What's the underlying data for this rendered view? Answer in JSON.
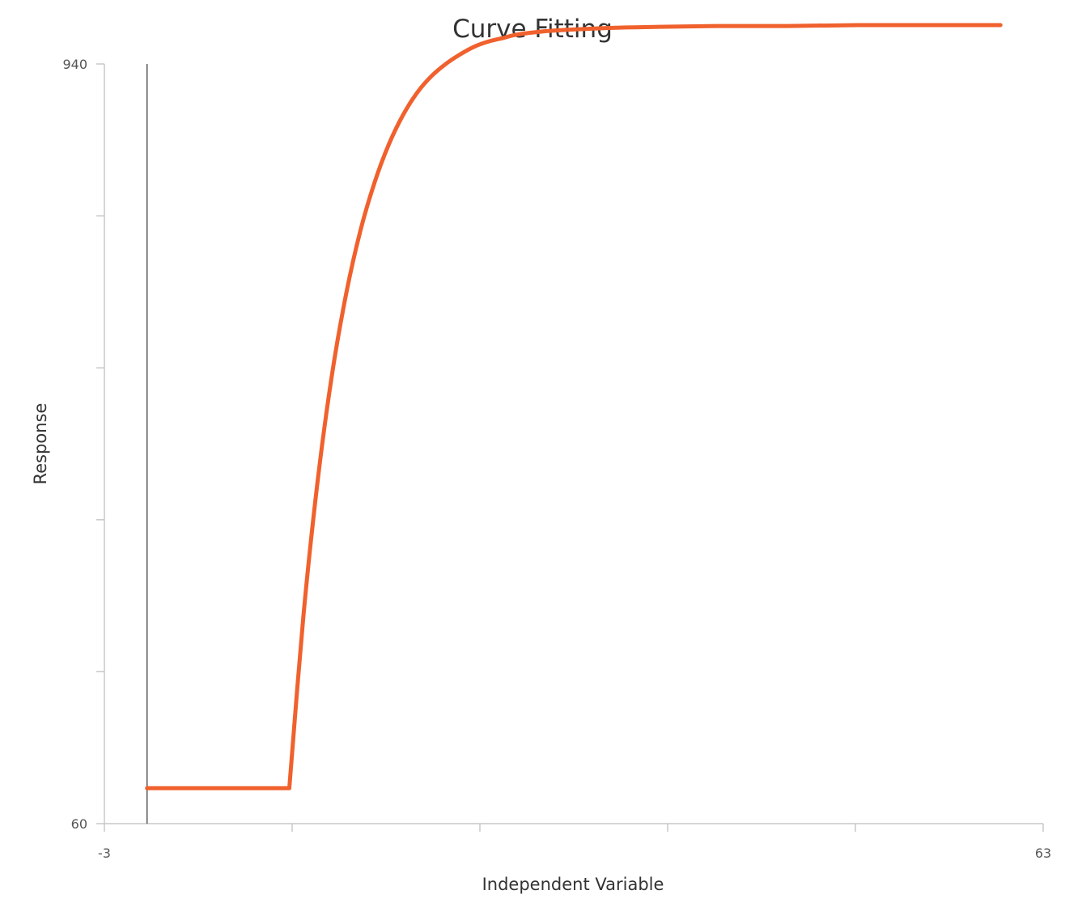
{
  "chart_data": {
    "type": "line",
    "title": "Curve Fitting",
    "xlabel": "Independent Variable",
    "ylabel": "Response",
    "xlim": [
      -3,
      63
    ],
    "ylim": [
      60,
      940
    ],
    "x_tick_labels": [
      "-3",
      "63"
    ],
    "y_tick_labels": [
      "940",
      "60"
    ],
    "x_tick_values": [
      -3,
      10.2,
      23.4,
      36.6,
      49.8,
      63
    ],
    "y_tick_values": [
      60,
      236,
      412,
      588,
      764,
      940
    ],
    "vertical_reference_line": 0,
    "grid": false,
    "legend": "none",
    "series": [
      {
        "color": "#f0612d",
        "x": [
          0,
          10,
          11,
          12,
          13,
          14,
          15,
          16,
          17,
          18,
          19,
          20,
          21,
          22,
          23,
          24,
          25,
          26,
          28,
          30,
          33,
          36,
          40,
          45,
          50,
          55,
          60
        ],
        "y": [
          101,
          101,
          302,
          458,
          580,
          674,
          747,
          803,
          847,
          881,
          907,
          926,
          940,
          951,
          960,
          966,
          970,
          974,
          978,
          980,
          982,
          983,
          984,
          984,
          985,
          985,
          985
        ]
      }
    ]
  }
}
